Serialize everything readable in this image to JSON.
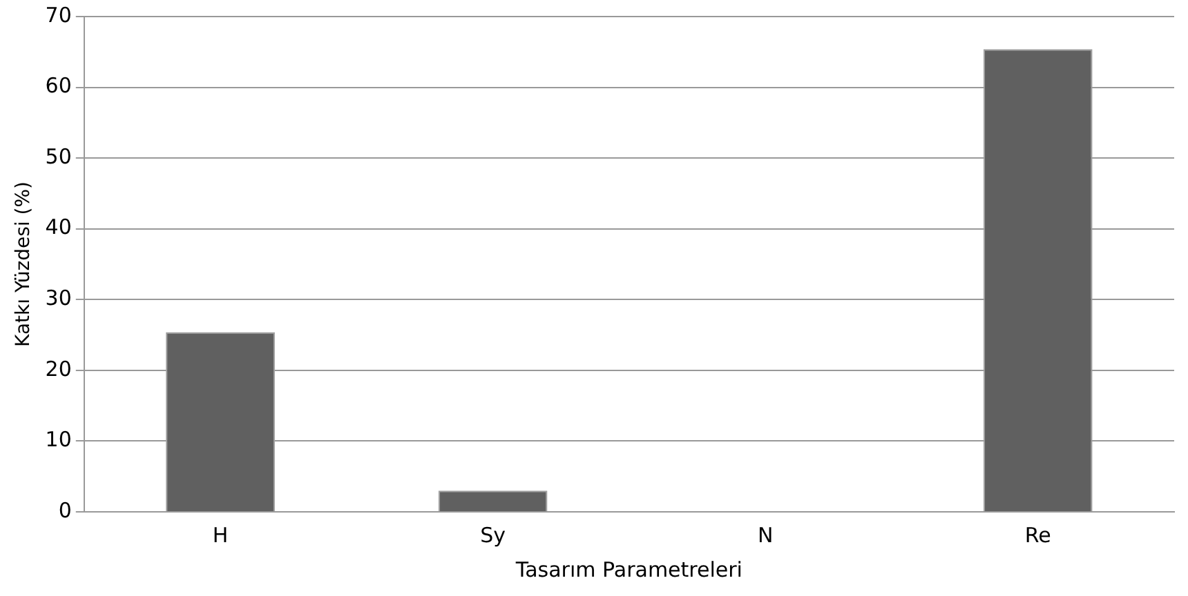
{
  "chart_data": {
    "type": "bar",
    "xlabel": "Tasarım Parametreleri",
    "ylabel": "Katkı Yüzdesi (%)",
    "categories": [
      "H",
      "Sy",
      "N",
      "Re"
    ],
    "values": [
      25.4,
      3,
      0,
      65.4
    ],
    "color": "#606060",
    "ylim": [
      0,
      70
    ],
    "yticks": [
      0,
      10,
      20,
      30,
      40,
      50,
      60,
      70
    ],
    "grid": "y"
  }
}
